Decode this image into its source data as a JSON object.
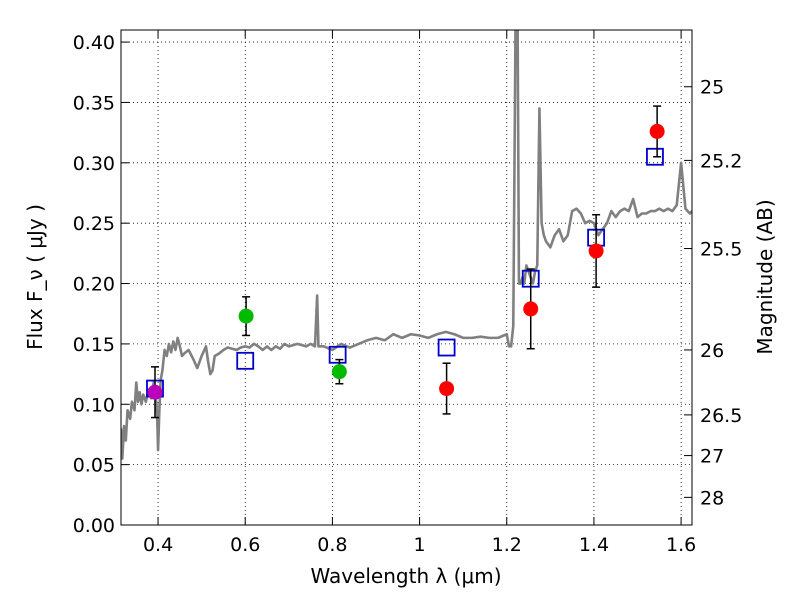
{
  "chart_data": {
    "type": "scatter",
    "xlabel": "Wavelength  λ (μm)",
    "ylabel": "Flux  F_ν  ( μJy )",
    "y2label": "Magnitude (AB)",
    "xlim": [
      0.315,
      1.625
    ],
    "ylim": [
      0.0,
      0.41
    ],
    "grid": true,
    "xticks": [
      {
        "value": 0.4,
        "label": "0.4"
      },
      {
        "value": 0.6,
        "label": "0.6"
      },
      {
        "value": 0.8,
        "label": "0.8"
      },
      {
        "value": 1.0,
        "label": "1"
      },
      {
        "value": 1.2,
        "label": "1.2"
      },
      {
        "value": 1.4,
        "label": "1.4"
      },
      {
        "value": 1.6,
        "label": "1.6"
      }
    ],
    "yticks": [
      {
        "value": 0.0,
        "label": "0.00"
      },
      {
        "value": 0.05,
        "label": "0.05"
      },
      {
        "value": 0.1,
        "label": "0.10"
      },
      {
        "value": 0.15,
        "label": "0.15"
      },
      {
        "value": 0.2,
        "label": "0.20"
      },
      {
        "value": 0.25,
        "label": "0.25"
      },
      {
        "value": 0.3,
        "label": "0.30"
      },
      {
        "value": 0.35,
        "label": "0.35"
      },
      {
        "value": 0.4,
        "label": "0.40"
      }
    ],
    "y2ticks": [
      {
        "flux": 0.363,
        "label": "25"
      },
      {
        "flux": 0.302,
        "label": "25.2"
      },
      {
        "flux": 0.229,
        "label": "25.5"
      },
      {
        "flux": 0.145,
        "label": "26"
      },
      {
        "flux": 0.0912,
        "label": "26.5"
      },
      {
        "flux": 0.0575,
        "label": "27"
      },
      {
        "flux": 0.0229,
        "label": "28"
      }
    ],
    "series": [
      {
        "name": "model spectrum",
        "kind": "line",
        "color": "#808080",
        "points": [
          [
            0.315,
            0.08
          ],
          [
            0.318,
            0.055
          ],
          [
            0.322,
            0.082
          ],
          [
            0.326,
            0.07
          ],
          [
            0.33,
            0.095
          ],
          [
            0.336,
            0.088
          ],
          [
            0.34,
            0.102
          ],
          [
            0.346,
            0.095
          ],
          [
            0.35,
            0.118
          ],
          [
            0.354,
            0.102
          ],
          [
            0.358,
            0.11
          ],
          [
            0.362,
            0.1
          ],
          [
            0.366,
            0.108
          ],
          [
            0.372,
            0.102
          ],
          [
            0.378,
            0.112
          ],
          [
            0.384,
            0.105
          ],
          [
            0.39,
            0.118
          ],
          [
            0.394,
            0.11
          ],
          [
            0.398,
            0.09
          ],
          [
            0.4,
            0.062
          ],
          [
            0.403,
            0.095
          ],
          [
            0.406,
            0.12
          ],
          [
            0.41,
            0.128
          ],
          [
            0.415,
            0.145
          ],
          [
            0.42,
            0.14
          ],
          [
            0.425,
            0.15
          ],
          [
            0.43,
            0.143
          ],
          [
            0.435,
            0.152
          ],
          [
            0.44,
            0.145
          ],
          [
            0.445,
            0.155
          ],
          [
            0.45,
            0.148
          ],
          [
            0.455,
            0.14
          ],
          [
            0.46,
            0.142
          ],
          [
            0.47,
            0.145
          ],
          [
            0.48,
            0.138
          ],
          [
            0.49,
            0.13
          ],
          [
            0.5,
            0.14
          ],
          [
            0.51,
            0.148
          ],
          [
            0.515,
            0.135
          ],
          [
            0.52,
            0.125
          ],
          [
            0.525,
            0.128
          ],
          [
            0.53,
            0.14
          ],
          [
            0.54,
            0.142
          ],
          [
            0.55,
            0.145
          ],
          [
            0.56,
            0.147
          ],
          [
            0.57,
            0.146
          ],
          [
            0.58,
            0.145
          ],
          [
            0.59,
            0.147
          ],
          [
            0.6,
            0.148
          ],
          [
            0.61,
            0.147
          ],
          [
            0.62,
            0.15
          ],
          [
            0.63,
            0.148
          ],
          [
            0.64,
            0.145
          ],
          [
            0.65,
            0.148
          ],
          [
            0.66,
            0.145
          ],
          [
            0.67,
            0.148
          ],
          [
            0.68,
            0.146
          ],
          [
            0.69,
            0.15
          ],
          [
            0.7,
            0.148
          ],
          [
            0.72,
            0.15
          ],
          [
            0.74,
            0.148
          ],
          [
            0.75,
            0.15
          ],
          [
            0.76,
            0.148
          ],
          [
            0.765,
            0.19
          ],
          [
            0.768,
            0.148
          ],
          [
            0.78,
            0.148
          ],
          [
            0.8,
            0.145
          ],
          [
            0.82,
            0.15
          ],
          [
            0.84,
            0.147
          ],
          [
            0.86,
            0.15
          ],
          [
            0.88,
            0.153
          ],
          [
            0.9,
            0.155
          ],
          [
            0.92,
            0.153
          ],
          [
            0.94,
            0.158
          ],
          [
            0.96,
            0.155
          ],
          [
            0.98,
            0.158
          ],
          [
            1.0,
            0.157
          ],
          [
            1.02,
            0.155
          ],
          [
            1.04,
            0.158
          ],
          [
            1.06,
            0.16
          ],
          [
            1.08,
            0.158
          ],
          [
            1.1,
            0.155
          ],
          [
            1.12,
            0.155
          ],
          [
            1.14,
            0.156
          ],
          [
            1.16,
            0.155
          ],
          [
            1.18,
            0.155
          ],
          [
            1.2,
            0.158
          ],
          [
            1.205,
            0.148
          ],
          [
            1.21,
            0.148
          ],
          [
            1.215,
            0.165
          ],
          [
            1.22,
            0.41
          ],
          [
            1.225,
            0.41
          ],
          [
            1.228,
            0.2
          ],
          [
            1.232,
            0.2
          ],
          [
            1.236,
            0.205
          ],
          [
            1.24,
            0.2
          ],
          [
            1.245,
            0.215
          ],
          [
            1.25,
            0.21
          ],
          [
            1.255,
            0.205
          ],
          [
            1.26,
            0.2
          ],
          [
            1.265,
            0.21
          ],
          [
            1.27,
            0.215
          ],
          [
            1.275,
            0.345
          ],
          [
            1.28,
            0.25
          ],
          [
            1.285,
            0.24
          ],
          [
            1.29,
            0.235
          ],
          [
            1.3,
            0.23
          ],
          [
            1.31,
            0.24
          ],
          [
            1.32,
            0.245
          ],
          [
            1.33,
            0.235
          ],
          [
            1.34,
            0.24
          ],
          [
            1.35,
            0.26
          ],
          [
            1.36,
            0.262
          ],
          [
            1.37,
            0.258
          ],
          [
            1.38,
            0.25
          ],
          [
            1.39,
            0.252
          ],
          [
            1.4,
            0.25
          ],
          [
            1.41,
            0.24
          ],
          [
            1.42,
            0.245
          ],
          [
            1.43,
            0.25
          ],
          [
            1.44,
            0.26
          ],
          [
            1.45,
            0.255
          ],
          [
            1.46,
            0.26
          ],
          [
            1.47,
            0.262
          ],
          [
            1.48,
            0.26
          ],
          [
            1.49,
            0.27
          ],
          [
            1.5,
            0.255
          ],
          [
            1.51,
            0.258
          ],
          [
            1.52,
            0.258
          ],
          [
            1.53,
            0.26
          ],
          [
            1.54,
            0.26
          ],
          [
            1.55,
            0.262
          ],
          [
            1.56,
            0.26
          ],
          [
            1.57,
            0.262
          ],
          [
            1.58,
            0.26
          ],
          [
            1.59,
            0.265
          ],
          [
            1.6,
            0.3
          ],
          [
            1.61,
            0.262
          ],
          [
            1.62,
            0.258
          ],
          [
            1.625,
            0.26
          ]
        ]
      },
      {
        "name": "model photometry",
        "kind": "open-square",
        "color": "#0000cc",
        "points": [
          [
            0.393,
            0.113
          ],
          [
            0.6,
            0.136
          ],
          [
            0.812,
            0.141
          ],
          [
            1.062,
            0.147
          ],
          [
            1.255,
            0.204
          ],
          [
            1.405,
            0.238
          ],
          [
            1.54,
            0.305
          ]
        ]
      },
      {
        "name": "observed (red)",
        "kind": "filled-circle",
        "color": "#ff0000",
        "points": [
          {
            "x": 1.062,
            "y": 0.113,
            "err": 0.021
          },
          {
            "x": 1.255,
            "y": 0.179,
            "err": 0.033
          },
          {
            "x": 1.405,
            "y": 0.227,
            "err": 0.03
          },
          {
            "x": 1.545,
            "y": 0.326,
            "err": 0.021
          }
        ]
      },
      {
        "name": "observed (green)",
        "kind": "filled-circle",
        "color": "#00bb00",
        "points": [
          {
            "x": 0.602,
            "y": 0.173,
            "err": 0.016
          },
          {
            "x": 0.816,
            "y": 0.127,
            "err": 0.01
          }
        ]
      },
      {
        "name": "observed (magenta)",
        "kind": "filled-circle",
        "color": "#bb00bb",
        "points": [
          {
            "x": 0.393,
            "y": 0.11,
            "err": 0.021
          }
        ]
      }
    ]
  }
}
